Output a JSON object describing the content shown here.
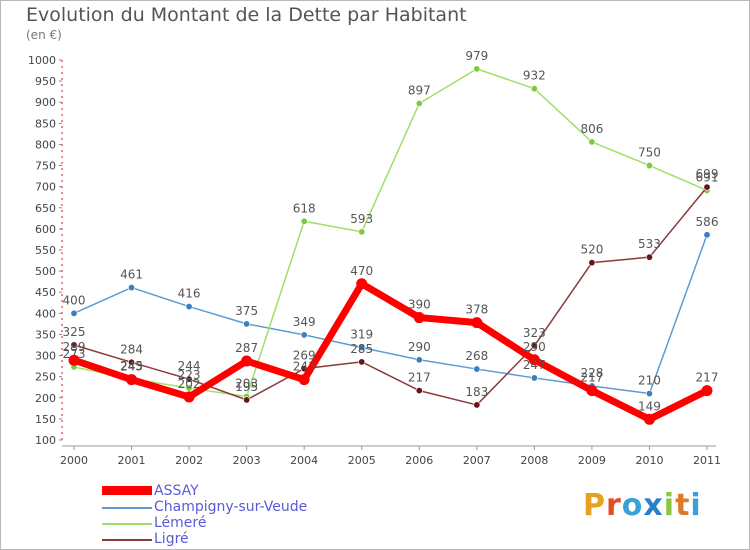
{
  "title": "Evolution du Montant de la Dette par Habitant",
  "unit": "(en €)",
  "logo_text": "Proxiti",
  "colors": {
    "ASSAY": "#ff0000",
    "Champigny-sur-Veude": "#5f9bd0",
    "Lémeré": "#9ee06a",
    "Ligré": "#8b3a3a"
  },
  "chart_data": {
    "type": "line",
    "title": "Evolution du Montant de la Dette par Habitant",
    "subtitle": "(en €)",
    "xlabel": "",
    "ylabel": "",
    "x": [
      "2000",
      "2001",
      "2002",
      "2003",
      "2004",
      "2005",
      "2006",
      "2007",
      "2008",
      "2009",
      "2010",
      "2011"
    ],
    "y_ticks": [
      100,
      150,
      200,
      250,
      300,
      350,
      400,
      450,
      500,
      550,
      600,
      650,
      700,
      750,
      800,
      850,
      900,
      950,
      1000
    ],
    "ylim": [
      100,
      1000
    ],
    "grid": false,
    "legend": "bottom-left",
    "series": [
      {
        "name": "Champigny-sur-Veude",
        "color": "#5f9bd0",
        "values": [
          400,
          461,
          416,
          375,
          349,
          319,
          290,
          268,
          247,
          228,
          210,
          586
        ]
      },
      {
        "name": "Lémeré",
        "color": "#9ee06a",
        "values": [
          273,
          245,
          223,
          203,
          618,
          593,
          897,
          979,
          932,
          806,
          750,
          691
        ]
      },
      {
        "name": "Ligré",
        "color": "#8b3a3a",
        "values": [
          325,
          284,
          244,
          195,
          269,
          285,
          217,
          183,
          323,
          520,
          533,
          699
        ]
      },
      {
        "name": "ASSAY",
        "color": "#ff0000",
        "values": [
          289,
          243,
          202,
          287,
          243,
          470,
          390,
          378,
          290,
          217,
          149,
          217
        ]
      }
    ],
    "data_labels": [
      [
        "400",
        "461",
        "416",
        "375",
        "349",
        "319",
        "290",
        "268",
        "247",
        "228",
        "210",
        "586"
      ],
      [
        "273",
        "245",
        "223",
        "203",
        "618",
        "593",
        "897",
        "979",
        "932",
        "806",
        "750",
        "691"
      ],
      [
        "325",
        "284",
        "244",
        "195",
        "269",
        "285",
        "217",
        "183",
        "323",
        "520",
        "533",
        "699"
      ],
      [
        "289",
        "243",
        "202",
        "287",
        "243",
        "470",
        "390",
        "378",
        "290",
        "217",
        "149",
        "217"
      ]
    ]
  }
}
